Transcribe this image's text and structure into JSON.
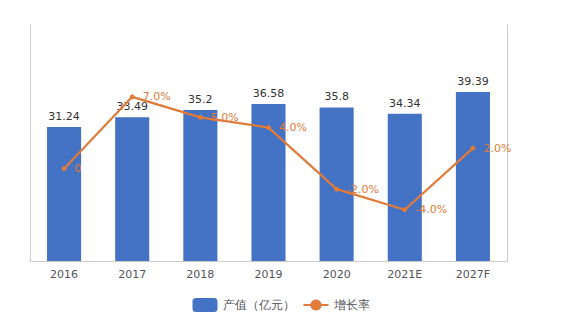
{
  "chart_data": {
    "type": "bar",
    "categories": [
      "2016",
      "2017",
      "2018",
      "2019",
      "2020",
      "2021E",
      "2027F"
    ],
    "series": [
      {
        "name": "产值（亿元）",
        "type": "bar",
        "color": "#4472C4",
        "values": [
          31.24,
          33.49,
          35.2,
          36.58,
          35.8,
          34.34,
          39.39
        ]
      },
      {
        "name": "增长率",
        "type": "line",
        "color": "#E07B39",
        "axis": "y2",
        "values": [
          0,
          7.0,
          5.0,
          4.0,
          -2.0,
          -4.0,
          2.0
        ],
        "value_labels": [
          "0",
          "7.0%",
          "5.0%",
          "4.0%",
          "-2.0%",
          "-4.0%",
          "2.0%"
        ]
      }
    ],
    "ylim": [
      0,
      55
    ],
    "y2lim": [
      -9,
      14
    ],
    "data_labels": true,
    "tick_labels": "x",
    "grid": false,
    "legend": "bottom"
  }
}
